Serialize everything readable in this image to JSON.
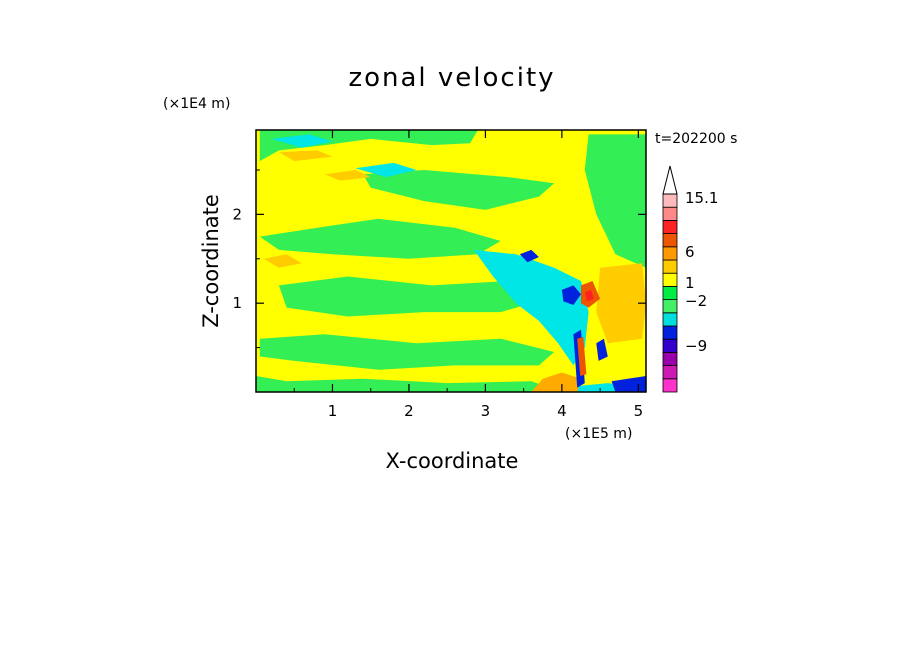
{
  "chart_data": {
    "type": "heatmap",
    "title": "zonal velocity",
    "xlabel": "X-coordinate",
    "ylabel": "Z-coordinate",
    "x_scale_label": "(×1E5 m)",
    "y_scale_label": "(×1E4 m)",
    "time_label": "t=202200 s",
    "xlim": [
      0,
      5.1
    ],
    "ylim": [
      0,
      2.95
    ],
    "x_ticks": [
      "1",
      "2",
      "3",
      "4",
      "5"
    ],
    "x_tick_values": [
      1,
      2,
      3,
      4,
      5
    ],
    "y_ticks": [
      "1",
      "2"
    ],
    "y_tick_values": [
      1,
      2
    ],
    "colorbar": {
      "labels": [
        "15.1",
        "6",
        "1",
        "−2",
        "−9"
      ],
      "label_values": [
        15.1,
        6,
        1,
        -2,
        -9
      ],
      "bins": [
        {
          "color": "#ff33cc"
        },
        {
          "color": "#cc1ab3"
        },
        {
          "color": "#9900aa"
        },
        {
          "color": "#3300cc"
        },
        {
          "color": "#0022dd"
        },
        {
          "color": "#00dddd"
        },
        {
          "color": "#44ee66"
        },
        {
          "color": "#00ee44"
        },
        {
          "color": "#ffff00"
        },
        {
          "color": "#ffcc00"
        },
        {
          "color": "#ff9900"
        },
        {
          "color": "#ee5500"
        },
        {
          "color": "#ff2222"
        },
        {
          "color": "#ff8888"
        },
        {
          "color": "#ffbbbb"
        }
      ],
      "extend_color": "#ffffff"
    },
    "regions": [
      {
        "name": "background",
        "color": "#ffff00",
        "points": [
          [
            0,
            0
          ],
          [
            5.1,
            0
          ],
          [
            5.1,
            2.95
          ],
          [
            0,
            2.95
          ]
        ]
      },
      {
        "name": "green-band-top",
        "color": "#33ee55",
        "points": [
          [
            0.05,
            2.95
          ],
          [
            2.9,
            2.95
          ],
          [
            2.8,
            2.8
          ],
          [
            2.3,
            2.78
          ],
          [
            1.5,
            2.85
          ],
          [
            0.9,
            2.78
          ],
          [
            0.3,
            2.72
          ],
          [
            0.05,
            2.6
          ]
        ]
      },
      {
        "name": "green-band-upper",
        "color": "#33ee55",
        "points": [
          [
            1.4,
            2.45
          ],
          [
            2.2,
            2.5
          ],
          [
            3.3,
            2.42
          ],
          [
            3.9,
            2.35
          ],
          [
            3.7,
            2.2
          ],
          [
            3.0,
            2.05
          ],
          [
            2.2,
            2.15
          ],
          [
            1.5,
            2.3
          ]
        ]
      },
      {
        "name": "green-band-mid1",
        "color": "#33ee55",
        "points": [
          [
            0.05,
            1.75
          ],
          [
            0.8,
            1.85
          ],
          [
            1.6,
            1.95
          ],
          [
            2.6,
            1.85
          ],
          [
            3.2,
            1.7
          ],
          [
            2.9,
            1.55
          ],
          [
            2.0,
            1.5
          ],
          [
            1.0,
            1.55
          ],
          [
            0.3,
            1.6
          ]
        ]
      },
      {
        "name": "green-band-mid2",
        "color": "#33ee55",
        "points": [
          [
            0.3,
            1.2
          ],
          [
            1.2,
            1.3
          ],
          [
            2.3,
            1.2
          ],
          [
            3.3,
            1.25
          ],
          [
            3.6,
            1.0
          ],
          [
            3.2,
            0.9
          ],
          [
            2.2,
            0.9
          ],
          [
            1.2,
            0.85
          ],
          [
            0.4,
            0.95
          ]
        ]
      },
      {
        "name": "green-band-low",
        "color": "#33ee55",
        "points": [
          [
            0.05,
            0.6
          ],
          [
            0.9,
            0.65
          ],
          [
            2.1,
            0.55
          ],
          [
            3.2,
            0.6
          ],
          [
            3.9,
            0.45
          ],
          [
            3.7,
            0.3
          ],
          [
            2.6,
            0.3
          ],
          [
            1.6,
            0.25
          ],
          [
            0.5,
            0.35
          ],
          [
            0.05,
            0.4
          ]
        ]
      },
      {
        "name": "green-bottom",
        "color": "#33ee55",
        "points": [
          [
            0,
            0
          ],
          [
            4.0,
            0
          ],
          [
            3.6,
            0.12
          ],
          [
            2.5,
            0.1
          ],
          [
            1.4,
            0.15
          ],
          [
            0.4,
            0.12
          ],
          [
            0,
            0.18
          ]
        ]
      },
      {
        "name": "green-right",
        "color": "#33ee55",
        "points": [
          [
            4.35,
            2.9
          ],
          [
            5.1,
            2.9
          ],
          [
            5.1,
            1.4
          ],
          [
            4.7,
            1.55
          ],
          [
            4.45,
            2.0
          ],
          [
            4.3,
            2.5
          ]
        ]
      },
      {
        "name": "cyan-main",
        "color": "#00e5e5",
        "points": [
          [
            2.85,
            1.6
          ],
          [
            3.4,
            1.55
          ],
          [
            3.9,
            1.4
          ],
          [
            4.25,
            1.25
          ],
          [
            4.35,
            0.9
          ],
          [
            4.3,
            0.5
          ],
          [
            4.15,
            0.3
          ],
          [
            3.95,
            0.55
          ],
          [
            3.7,
            0.8
          ],
          [
            3.4,
            1.0
          ],
          [
            3.1,
            1.3
          ]
        ]
      },
      {
        "name": "cyan-top-left",
        "color": "#00e5e5",
        "points": [
          [
            0.2,
            2.85
          ],
          [
            0.7,
            2.9
          ],
          [
            1.0,
            2.82
          ],
          [
            0.6,
            2.75
          ]
        ]
      },
      {
        "name": "cyan-top",
        "color": "#00e5e5",
        "points": [
          [
            1.3,
            2.52
          ],
          [
            1.8,
            2.58
          ],
          [
            2.1,
            2.5
          ],
          [
            1.7,
            2.42
          ]
        ]
      },
      {
        "name": "cyan-lower",
        "color": "#00e5e5",
        "points": [
          [
            4.0,
            0.05
          ],
          [
            4.6,
            0.1
          ],
          [
            5.1,
            0.05
          ],
          [
            5.1,
            0
          ],
          [
            4.0,
            0
          ]
        ]
      },
      {
        "name": "orange-left-upper",
        "color": "#ffcc00",
        "points": [
          [
            0.1,
            1.5
          ],
          [
            0.4,
            1.55
          ],
          [
            0.6,
            1.45
          ],
          [
            0.3,
            1.4
          ]
        ]
      },
      {
        "name": "orange-top",
        "color": "#ffcc00",
        "points": [
          [
            0.3,
            2.7
          ],
          [
            0.8,
            2.72
          ],
          [
            1.0,
            2.65
          ],
          [
            0.5,
            2.6
          ]
        ]
      },
      {
        "name": "orange-mid",
        "color": "#ffcc00",
        "points": [
          [
            0.9,
            2.45
          ],
          [
            1.3,
            2.5
          ],
          [
            1.5,
            2.42
          ],
          [
            1.1,
            2.38
          ]
        ]
      },
      {
        "name": "orange-right",
        "color": "#ffcc00",
        "points": [
          [
            4.5,
            1.4
          ],
          [
            5.05,
            1.45
          ],
          [
            5.1,
            1.0
          ],
          [
            5.05,
            0.6
          ],
          [
            4.6,
            0.55
          ],
          [
            4.45,
            0.9
          ]
        ]
      },
      {
        "name": "orange-bottom",
        "color": "#ffaa00",
        "points": [
          [
            3.6,
            0
          ],
          [
            4.2,
            0
          ],
          [
            4.25,
            0.15
          ],
          [
            4.0,
            0.22
          ],
          [
            3.75,
            0.15
          ]
        ]
      },
      {
        "name": "blue-patch-1",
        "color": "#0022dd",
        "points": [
          [
            4.0,
            1.15
          ],
          [
            4.15,
            1.2
          ],
          [
            4.25,
            1.1
          ],
          [
            4.15,
            0.98
          ],
          [
            4.02,
            1.02
          ]
        ]
      },
      {
        "name": "blue-patch-2",
        "color": "#0022dd",
        "points": [
          [
            3.45,
            1.55
          ],
          [
            3.6,
            1.6
          ],
          [
            3.7,
            1.52
          ],
          [
            3.55,
            1.46
          ]
        ]
      },
      {
        "name": "blue-patch-3",
        "color": "#0022dd",
        "points": [
          [
            4.15,
            0.65
          ],
          [
            4.25,
            0.7
          ],
          [
            4.3,
            0.1
          ],
          [
            4.2,
            0.05
          ]
        ]
      },
      {
        "name": "blue-patch-4",
        "color": "#0022dd",
        "points": [
          [
            4.45,
            0.55
          ],
          [
            4.55,
            0.6
          ],
          [
            4.6,
            0.4
          ],
          [
            4.48,
            0.35
          ]
        ]
      },
      {
        "name": "blue-patch-5",
        "color": "#0022dd",
        "points": [
          [
            4.65,
            0.12
          ],
          [
            5.1,
            0.18
          ],
          [
            5.1,
            0
          ],
          [
            4.7,
            0
          ]
        ]
      },
      {
        "name": "red-patch-1",
        "color": "#ee5500",
        "points": [
          [
            4.25,
            1.2
          ],
          [
            4.4,
            1.25
          ],
          [
            4.5,
            1.05
          ],
          [
            4.35,
            0.95
          ],
          [
            4.25,
            1.0
          ]
        ]
      },
      {
        "name": "red-patch-2",
        "color": "#ff2222",
        "points": [
          [
            4.3,
            1.12
          ],
          [
            4.38,
            1.15
          ],
          [
            4.42,
            1.05
          ],
          [
            4.33,
            1.02
          ]
        ]
      },
      {
        "name": "red-patch-3",
        "color": "#ee5500",
        "points": [
          [
            4.2,
            0.6
          ],
          [
            4.28,
            0.62
          ],
          [
            4.32,
            0.2
          ],
          [
            4.24,
            0.18
          ]
        ]
      }
    ]
  }
}
